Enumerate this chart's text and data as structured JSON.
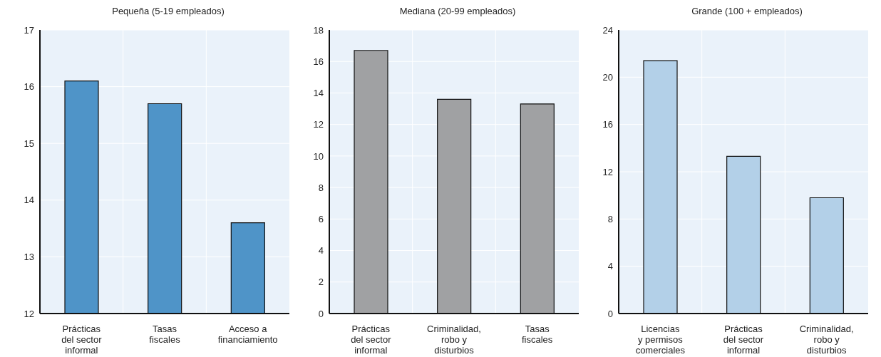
{
  "chart_data": [
    {
      "type": "bar",
      "title": "Pequeña (5-19 empleados)",
      "categories": [
        "Prácticas\ndel sector\ninformal",
        "Tasas\nfiscales",
        "Acceso a\nfinanciamiento"
      ],
      "values": [
        16.1,
        15.7,
        13.6
      ],
      "color": "#4f94c8",
      "ylim": [
        12,
        17
      ],
      "yticks": [
        12,
        13,
        14,
        15,
        16,
        17
      ],
      "grid": true
    },
    {
      "type": "bar",
      "title": "Mediana (20-99 empleados)",
      "categories": [
        "Prácticas\ndel sector\ninformal",
        "Criminalidad,\nrobo y\ndisturbios",
        "Tasas\nfiscales"
      ],
      "values": [
        16.7,
        13.6,
        13.3
      ],
      "color": "#a0a1a3",
      "ylim": [
        0,
        18
      ],
      "yticks": [
        0,
        2,
        4,
        6,
        8,
        10,
        12,
        14,
        16,
        18
      ],
      "grid": true
    },
    {
      "type": "bar",
      "title": "Grande (100 + empleados)",
      "categories": [
        "Licencias\ny permisos\ncomerciales",
        "Prácticas\ndel sector\ninformal",
        "Criminalidad,\nrobo y\ndisturbios"
      ],
      "values": [
        21.4,
        13.3,
        9.8
      ],
      "color": "#b3d0e8",
      "ylim": [
        0,
        24
      ],
      "yticks": [
        0,
        4,
        8,
        12,
        16,
        20,
        24
      ],
      "grid": true
    }
  ]
}
